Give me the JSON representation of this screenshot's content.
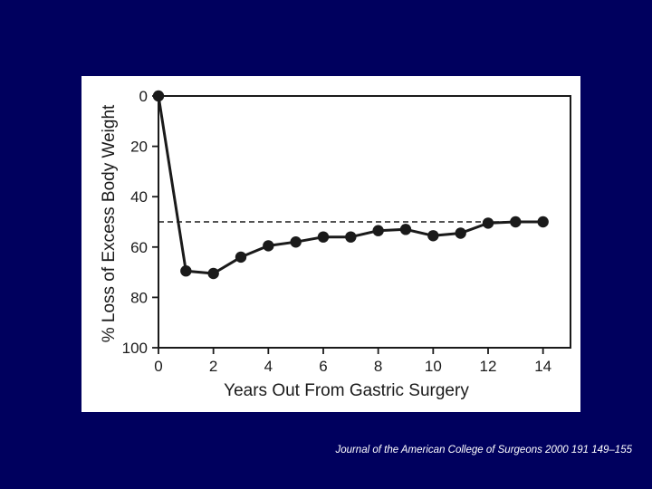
{
  "slide": {
    "background_color": "#00005e",
    "panel_color": "#ffffff",
    "citation": "Journal of the American College of Surgeons 2000 191 149–155"
  },
  "chart_data": {
    "type": "line",
    "xlabel": "Years Out From Gastric Surgery",
    "ylabel": "% Loss of Excess Body Weight",
    "xlim": [
      0,
      15
    ],
    "ylim": [
      0,
      100
    ],
    "y_inverted": true,
    "x_ticks": [
      0,
      2,
      4,
      6,
      8,
      10,
      12,
      14
    ],
    "y_ticks": [
      0,
      20,
      40,
      60,
      80,
      100
    ],
    "grid": false,
    "series": [
      {
        "line_color": "#1a1a1a",
        "marker": "circle",
        "x": [
          0,
          1,
          2,
          3,
          4,
          5,
          6,
          7,
          8,
          9,
          10,
          11,
          12,
          13,
          14
        ],
        "y": [
          0,
          69.5,
          70.5,
          64,
          59.5,
          58,
          56,
          56,
          53.5,
          53,
          55.5,
          54.5,
          50.5,
          50,
          50
        ]
      }
    ],
    "reference_line": {
      "style": "dashed",
      "y": 50,
      "x_range": [
        0,
        14
      ]
    }
  }
}
